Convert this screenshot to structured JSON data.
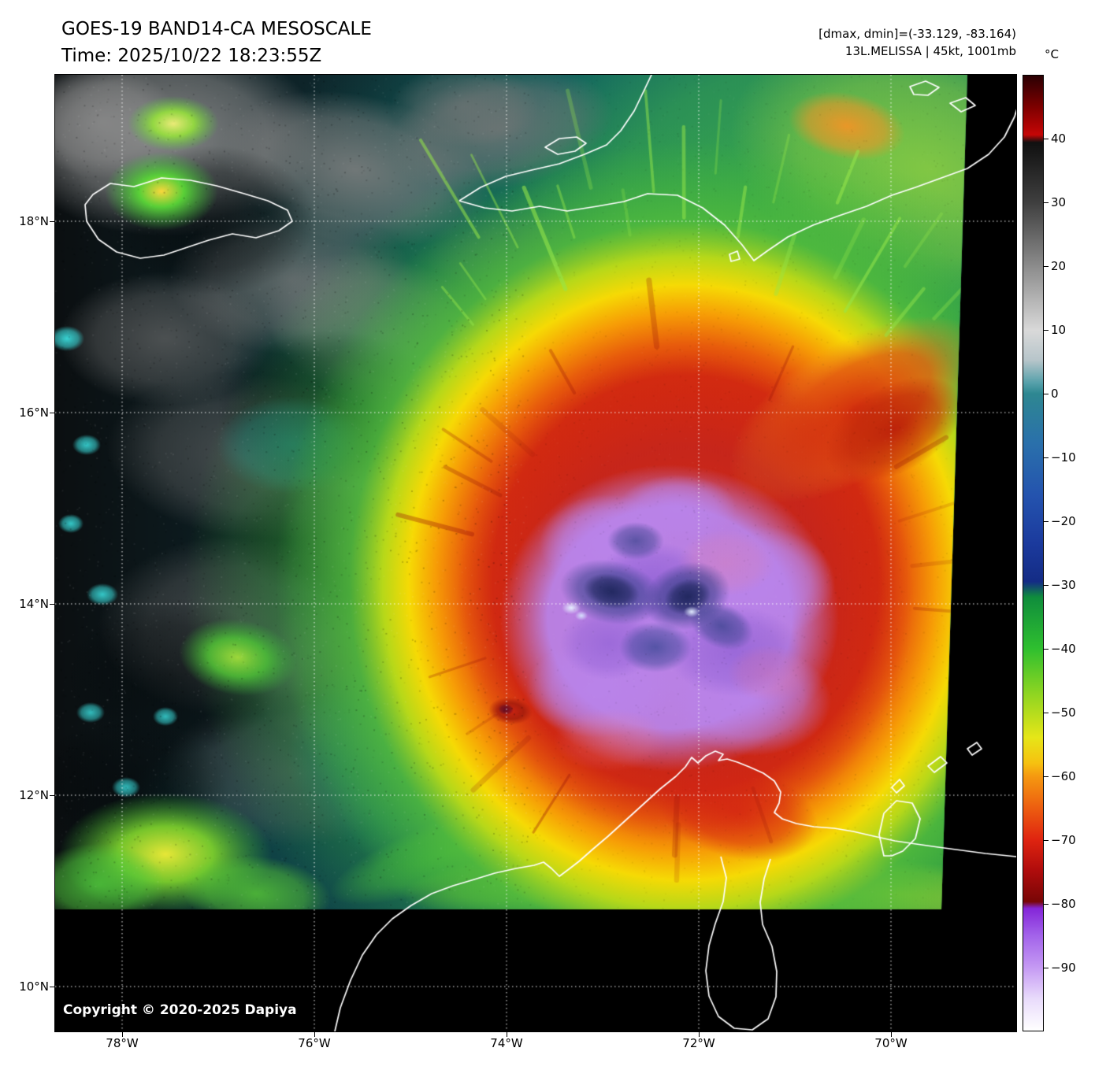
{
  "header": {
    "title": "GOES-19 BAND14-CA MESOSCALE",
    "time_line": "Time: 2025/10/22 18:23:55Z",
    "range_line": "[dmax, dmin]=(-33.129, -83.164)",
    "storm_line": "13L.MELISSA | 45kt, 1001mb"
  },
  "colorbar": {
    "unit_label": "°C",
    "tick_labels": [
      "40",
      "30",
      "20",
      "10",
      "0",
      "−10",
      "−20",
      "−30",
      "−40",
      "−50",
      "−60",
      "−70",
      "−80",
      "−90"
    ]
  },
  "axes": {
    "lat_labels": [
      "18°N",
      "16°N",
      "14°N",
      "12°N",
      "10°N"
    ],
    "lon_labels": [
      "78°W",
      "76°W",
      "74°W",
      "72°W",
      "70°W"
    ]
  },
  "footer": {
    "copyright": "Copyright © 2020-2025 Dapiya"
  }
}
